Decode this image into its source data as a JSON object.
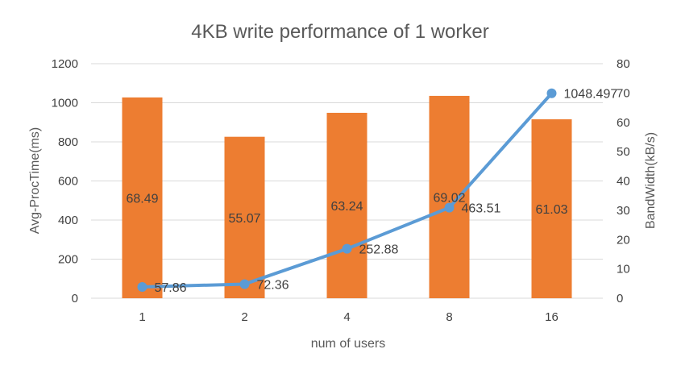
{
  "chart_data": {
    "type": "bar+line",
    "title": "4KB write performance of 1 worker",
    "xlabel": "num of users",
    "ylabel_left": "Avg-ProcTime(ms)",
    "ylabel_right": "BandWidth(kB/s)",
    "categories": [
      "1",
      "2",
      "4",
      "8",
      "16"
    ],
    "ylim_left": [
      0,
      1200
    ],
    "ylim_right": [
      0,
      80
    ],
    "yticks_left": [
      "0",
      "200",
      "400",
      "600",
      "800",
      "1000",
      "1200"
    ],
    "yticks_right": [
      "0",
      "10",
      "20",
      "30",
      "40",
      "50",
      "60",
      "70",
      "80"
    ],
    "grid": true,
    "series": [
      {
        "kind": "bar",
        "axis": "right",
        "color": "#ED7D31",
        "values": [
          68.49,
          55.07,
          63.24,
          69.02,
          61.03
        ],
        "labels": [
          "68.49",
          "55.07",
          "63.24",
          "69.02",
          "61.03"
        ]
      },
      {
        "kind": "line",
        "axis": "left",
        "color": "#5B9BD5",
        "values": [
          57.86,
          72.36,
          252.88,
          463.51,
          1048.497
        ],
        "labels": [
          "57.86",
          "72.36",
          "252.88",
          "463.51",
          "1048.497"
        ]
      }
    ]
  }
}
